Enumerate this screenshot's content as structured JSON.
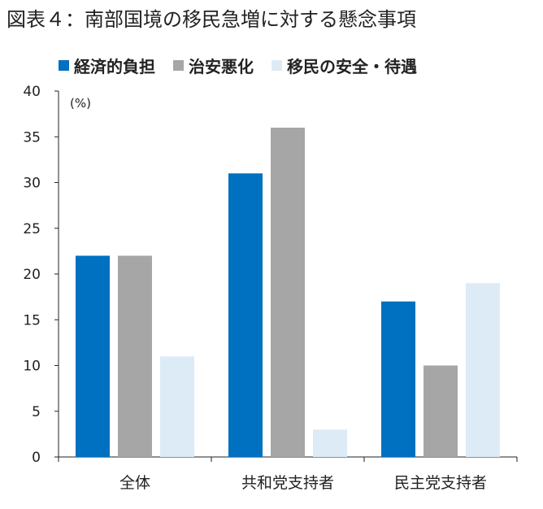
{
  "chart_data": {
    "type": "bar",
    "title": "図表４：南部国境の移民急増に対する懸念事項",
    "ylabel": "(%)",
    "xlabel": "",
    "ylim": [
      0,
      40
    ],
    "yticks": [
      0,
      5,
      10,
      15,
      20,
      25,
      30,
      35,
      40
    ],
    "categories": [
      "全体",
      "共和党支持者",
      "民主党支持者"
    ],
    "series": [
      {
        "name": "経済的負担",
        "color": "#0070C0",
        "values": [
          22,
          31,
          17
        ]
      },
      {
        "name": "治安悪化",
        "color": "#A6A6A6",
        "values": [
          22,
          36,
          10
        ]
      },
      {
        "name": "移民の安全・待遇",
        "color": "#DDEBF7",
        "values": [
          11,
          3,
          19
        ]
      }
    ],
    "legend_position": "top",
    "grid": false
  }
}
